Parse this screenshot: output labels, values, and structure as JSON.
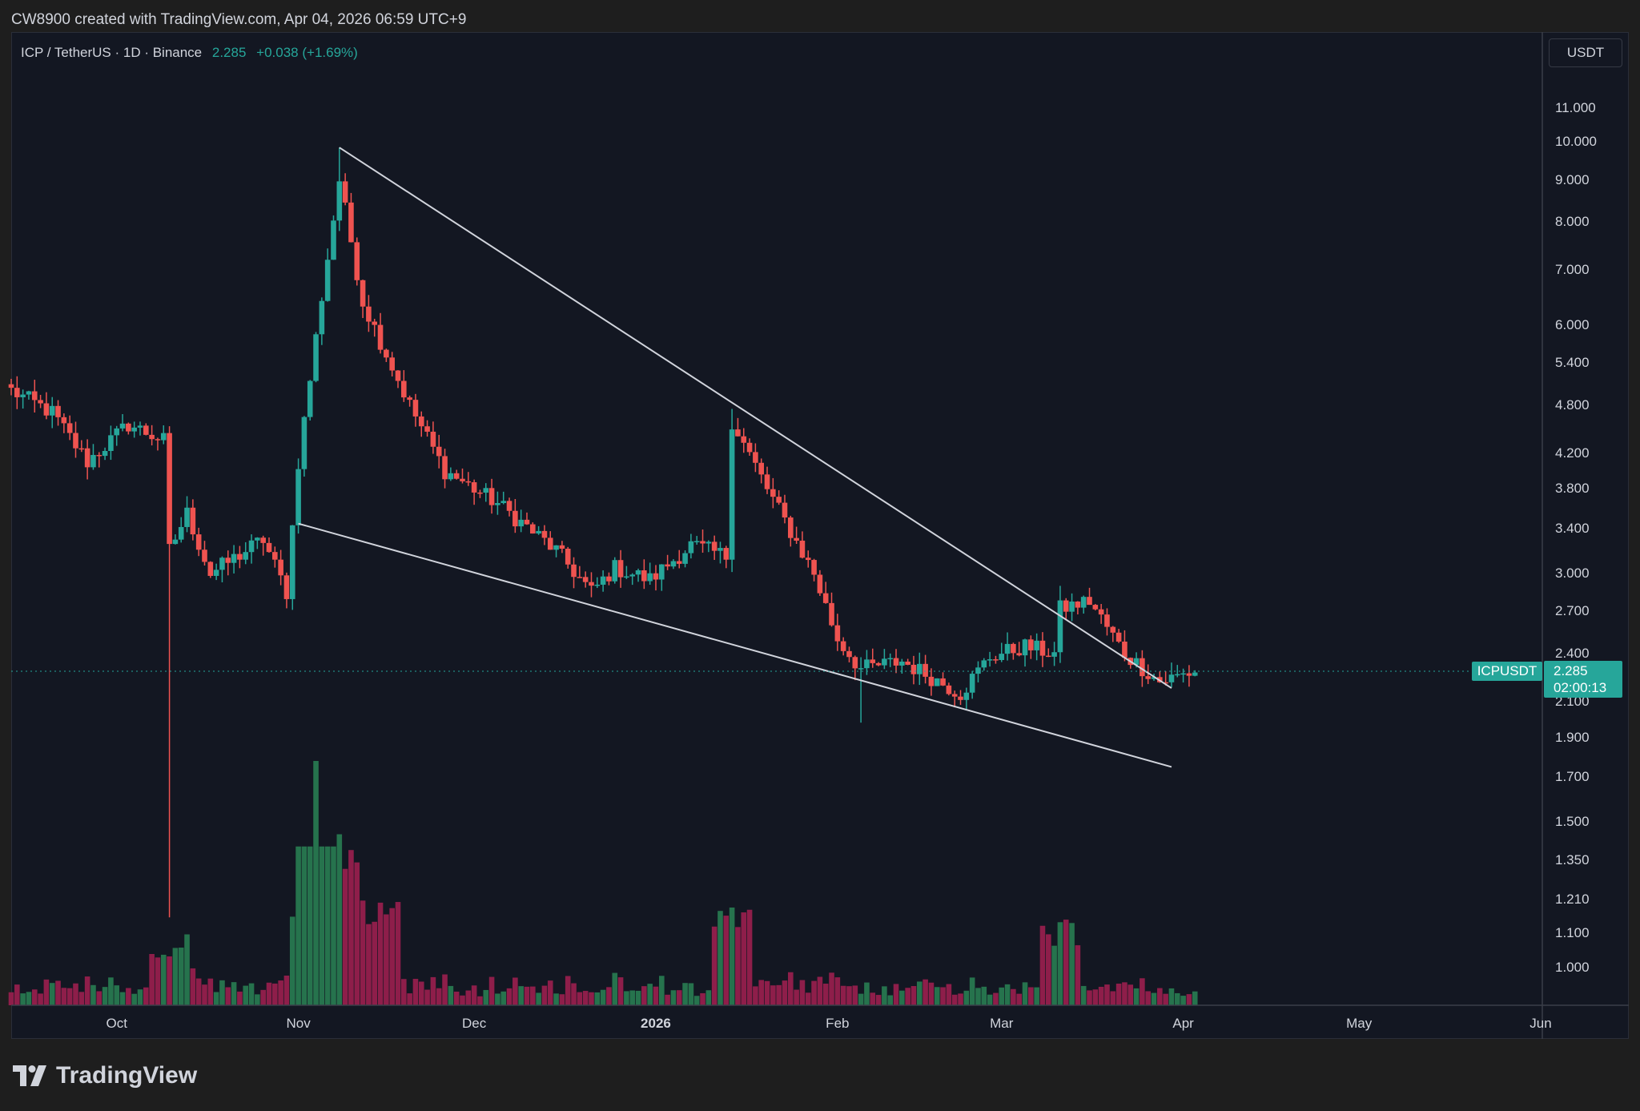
{
  "header": {
    "attribution": "CW8900 created with TradingView.com, Apr 04, 2026 06:59 UTC+9"
  },
  "symbol": {
    "title": "ICP / TetherUS · 1D · Binance",
    "last": "2.285",
    "change": "+0.038 (+1.69%)",
    "ticker": "ICPUSDT",
    "countdown": "02:00:13",
    "currency": "USDT"
  },
  "colors": {
    "background": "#131722",
    "up": "#26a69a",
    "down": "#ef5350",
    "volume_up": "#26734d",
    "volume_down": "#8e1e4a",
    "trendline": "#d1d4dc",
    "accent": "#26a69a"
  },
  "brand": {
    "name": "TradingView",
    "icon": "tradingview-logo-icon"
  },
  "chart_data": {
    "type": "candlestick",
    "title": "ICP / TetherUS · 1D · Binance",
    "scale": "log",
    "ylim": [
      0.9,
      13
    ],
    "y_ticks": [
      "11.000",
      "10.000",
      "9.000",
      "8.000",
      "7.000",
      "6.000",
      "5.400",
      "4.800",
      "4.200",
      "3.800",
      "3.400",
      "3.000",
      "2.700",
      "2.400",
      "2.100",
      "1.900",
      "1.700",
      "1.500",
      "1.350",
      "1.210",
      "1.100",
      "1.000"
    ],
    "x_ticks": [
      {
        "label": "Oct",
        "date": "2025-10-01"
      },
      {
        "label": "Nov",
        "date": "2025-11-01"
      },
      {
        "label": "Dec",
        "date": "2025-12-01"
      },
      {
        "label": "2026",
        "date": "2026-01-01",
        "bold": true
      },
      {
        "label": "Feb",
        "date": "2026-02-01"
      },
      {
        "label": "Mar",
        "date": "2026-03-01"
      },
      {
        "label": "Apr",
        "date": "2026-04-01"
      },
      {
        "label": "May",
        "date": "2026-05-01"
      },
      {
        "label": "Jun",
        "date": "2026-06-01"
      }
    ],
    "xlim": [
      "2025-09-13",
      "2026-06-01"
    ],
    "close_keypoints": [
      [
        "2025-09-13",
        5.0
      ],
      [
        "2025-09-20",
        4.7
      ],
      [
        "2025-09-26",
        4.1
      ],
      [
        "2025-10-03",
        4.55
      ],
      [
        "2025-10-09",
        4.35
      ],
      [
        "2025-10-10",
        3.2
      ],
      [
        "2025-10-13",
        3.55
      ],
      [
        "2025-10-17",
        3.0
      ],
      [
        "2025-10-26",
        3.3
      ],
      [
        "2025-10-30",
        2.85
      ],
      [
        "2025-11-01",
        4.1
      ],
      [
        "2025-11-05",
        6.5
      ],
      [
        "2025-11-08",
        9.0
      ],
      [
        "2025-11-12",
        6.4
      ],
      [
        "2025-11-20",
        4.8
      ],
      [
        "2025-11-26",
        4.0
      ],
      [
        "2025-12-05",
        3.65
      ],
      [
        "2025-12-15",
        3.2
      ],
      [
        "2025-12-21",
        2.85
      ],
      [
        "2025-12-25",
        3.05
      ],
      [
        "2025-12-31",
        2.95
      ],
      [
        "2026-01-07",
        3.25
      ],
      [
        "2026-01-13",
        3.15
      ],
      [
        "2026-01-14",
        4.6
      ],
      [
        "2026-01-20",
        3.8
      ],
      [
        "2026-01-28",
        3.0
      ],
      [
        "2026-02-01",
        2.5
      ],
      [
        "2026-02-05",
        2.3
      ],
      [
        "2026-02-12",
        2.35
      ],
      [
        "2026-02-22",
        2.15
      ],
      [
        "2026-02-27",
        2.38
      ],
      [
        "2026-03-05",
        2.45
      ],
      [
        "2026-03-10",
        2.4
      ],
      [
        "2026-03-11",
        2.72
      ],
      [
        "2026-03-16",
        2.78
      ],
      [
        "2026-03-22",
        2.4
      ],
      [
        "2026-03-28",
        2.22
      ],
      [
        "2026-04-03",
        2.285
      ]
    ],
    "special_wicks": [
      {
        "date": "2025-10-10",
        "low": 1.15
      },
      {
        "date": "2025-11-08",
        "high": 9.85
      },
      {
        "date": "2026-01-14",
        "high": 4.75
      },
      {
        "date": "2026-02-05",
        "low": 1.98
      },
      {
        "date": "2026-03-11",
        "high": 2.9
      }
    ],
    "volume_spikes": [
      {
        "date": "2025-10-10",
        "value": 0.2
      },
      {
        "date": "2025-11-04",
        "value": 1.0
      },
      {
        "date": "2025-11-08",
        "value": 0.7
      },
      {
        "date": "2025-11-15",
        "value": 0.42
      },
      {
        "date": "2026-01-14",
        "value": 0.4
      },
      {
        "date": "2026-03-11",
        "value": 0.34
      }
    ],
    "trendlines": [
      {
        "name": "upper",
        "from": {
          "date": "2025-11-08",
          "price": 9.85
        },
        "to": {
          "date": "2026-03-30",
          "price": 2.18
        }
      },
      {
        "name": "lower",
        "from": {
          "date": "2025-11-01",
          "price": 3.45
        },
        "to": {
          "date": "2026-03-30",
          "price": 1.75
        }
      }
    ],
    "last_price": 2.285
  }
}
